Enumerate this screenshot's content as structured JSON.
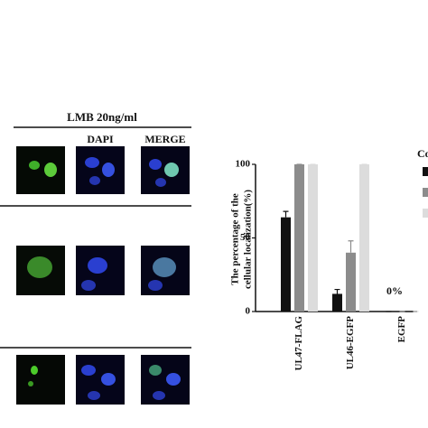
{
  "panel": {
    "title": "LMB 20ng/ml",
    "columns": [
      "DAPI",
      "MERGE"
    ]
  },
  "chart_data": {
    "type": "bar",
    "ylabel": [
      "The percentage of the",
      "cellular localization(%)"
    ],
    "categories": [
      "UL47-FLAG",
      "UL46-EGFP",
      "EGFP"
    ],
    "series": [
      {
        "color": "#111111",
        "values": [
          64,
          12,
          0
        ],
        "errors": [
          4,
          3,
          0
        ]
      },
      {
        "color": "#8c8c8c",
        "values": [
          100,
          40,
          0
        ],
        "errors": [
          0,
          8,
          0
        ]
      },
      {
        "color": "#dcdcdc",
        "values": [
          100,
          100,
          0
        ],
        "errors": [
          0,
          0,
          0
        ]
      }
    ],
    "ylim": [
      0,
      100
    ],
    "yticks": [
      0,
      50,
      100
    ],
    "annotation": "0%",
    "legend_title": "Co"
  }
}
